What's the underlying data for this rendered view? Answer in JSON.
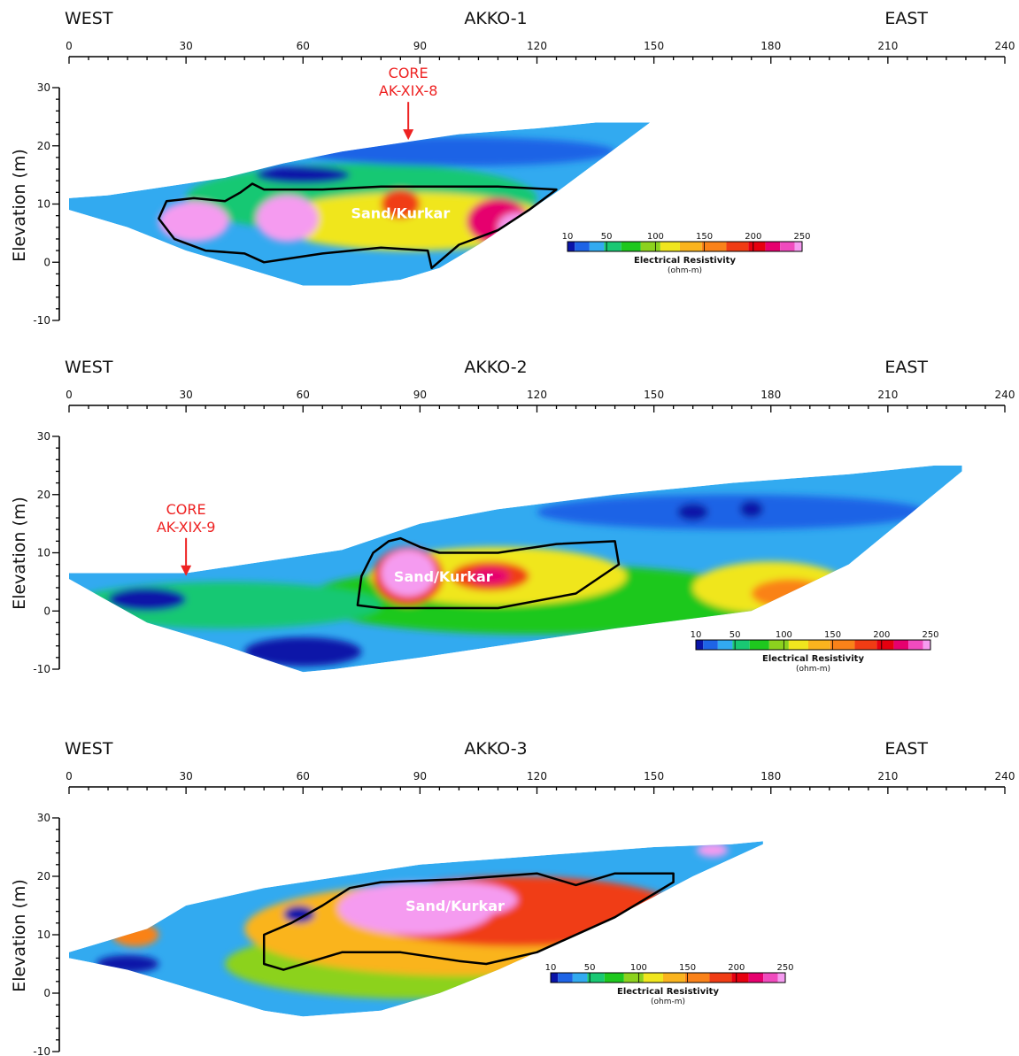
{
  "chart_data": [
    {
      "type": "heatmap",
      "title": "AKKO-1",
      "direction_left": "WEST",
      "direction_right": "EAST",
      "ylabel": "Elevation (m)",
      "xlim": [
        0,
        240
      ],
      "ylim": [
        -10,
        30
      ],
      "x_ticks": [
        0,
        30,
        60,
        90,
        120,
        150,
        180,
        210,
        240
      ],
      "y_ticks": [
        -10,
        0,
        10,
        20,
        30
      ],
      "core_label": [
        "CORE",
        "AK-XIX-8"
      ],
      "core_x": 87,
      "core_elev": 21,
      "unit_label": "Sand/Kurkar",
      "unit_label_pos": [
        85,
        8.5
      ],
      "section_top": [
        [
          0,
          11
        ],
        [
          10,
          11.5
        ],
        [
          25,
          13
        ],
        [
          40,
          14.5
        ],
        [
          55,
          17
        ],
        [
          70,
          19
        ],
        [
          85,
          20.5
        ],
        [
          100,
          22
        ],
        [
          120,
          23
        ],
        [
          135,
          24
        ],
        [
          149,
          24
        ]
      ],
      "section_bottom": [
        [
          149,
          24
        ],
        [
          125,
          12
        ],
        [
          105,
          3
        ],
        [
          95,
          -1
        ],
        [
          85,
          -3
        ],
        [
          72,
          -4
        ],
        [
          60,
          -4
        ],
        [
          45,
          -1
        ],
        [
          30,
          2
        ],
        [
          15,
          6
        ],
        [
          0,
          9
        ]
      ],
      "unit_outline": [
        [
          25,
          10.5
        ],
        [
          32,
          11
        ],
        [
          40,
          10.5
        ],
        [
          44,
          12
        ],
        [
          47,
          13.5
        ],
        [
          50,
          12.5
        ],
        [
          65,
          12.5
        ],
        [
          80,
          13
        ],
        [
          95,
          13
        ],
        [
          110,
          13
        ],
        [
          125,
          12.5
        ],
        [
          118,
          9
        ],
        [
          110,
          5.5
        ],
        [
          100,
          3
        ],
        [
          93,
          -1
        ],
        [
          92,
          2
        ],
        [
          80,
          2.5
        ],
        [
          65,
          1.5
        ],
        [
          55,
          0.5
        ],
        [
          50,
          0
        ],
        [
          45,
          1.5
        ],
        [
          35,
          2
        ],
        [
          27,
          4
        ],
        [
          23,
          7.5
        ]
      ],
      "color_bodies": [
        {
          "kind": "ellipse",
          "cx": 75,
          "cy": 11,
          "rx": 45,
          "ry": 6,
          "value": 60
        },
        {
          "kind": "ellipse",
          "cx": 88,
          "cy": 7,
          "rx": 36,
          "ry": 5,
          "value": 130
        },
        {
          "kind": "ellipse",
          "cx": 32,
          "cy": 7,
          "rx": 9,
          "ry": 3.5,
          "value": 250
        },
        {
          "kind": "ellipse",
          "cx": 56,
          "cy": 7.5,
          "rx": 8,
          "ry": 4,
          "value": 250
        },
        {
          "kind": "ellipse",
          "cx": 85,
          "cy": 10,
          "rx": 5,
          "ry": 2.5,
          "value": 200
        },
        {
          "kind": "ellipse",
          "cx": 110,
          "cy": 7,
          "rx": 8,
          "ry": 4,
          "value": 220
        },
        {
          "kind": "ellipse",
          "cx": 115,
          "cy": 6,
          "rx": 5,
          "ry": 2.5,
          "value": 250
        },
        {
          "kind": "ellipse",
          "cx": 100,
          "cy": 19,
          "rx": 40,
          "ry": 2.5,
          "value": 30
        },
        {
          "kind": "ellipse",
          "cx": 60,
          "cy": 15,
          "rx": 12,
          "ry": 1.5,
          "value": 20
        }
      ],
      "colorbar": {
        "ticks": [
          10,
          50,
          100,
          150,
          200,
          250
        ],
        "label": "Electrical Resistivity",
        "unit": "(ohm-m)"
      }
    },
    {
      "type": "heatmap",
      "title": "AKKO-2",
      "direction_left": "WEST",
      "direction_right": "EAST",
      "ylabel": "Elevation (m)",
      "xlim": [
        0,
        240
      ],
      "ylim": [
        -10,
        30
      ],
      "x_ticks": [
        0,
        30,
        60,
        90,
        120,
        150,
        180,
        210,
        240
      ],
      "y_ticks": [
        -10,
        0,
        10,
        20,
        30
      ],
      "core_label": [
        "CORE",
        "AK-XIX-9"
      ],
      "core_x": 30,
      "core_elev": 6,
      "unit_label": "Sand/Kurkar",
      "unit_label_pos": [
        96,
        6
      ],
      "section_top": [
        [
          0,
          6.5
        ],
        [
          30,
          6.5
        ],
        [
          55,
          9
        ],
        [
          70,
          10.5
        ],
        [
          90,
          15
        ],
        [
          110,
          17.5
        ],
        [
          140,
          20
        ],
        [
          170,
          22
        ],
        [
          200,
          23.5
        ],
        [
          222,
          25
        ],
        [
          229,
          25
        ]
      ],
      "section_bottom": [
        [
          229,
          24
        ],
        [
          200,
          8
        ],
        [
          175,
          0
        ],
        [
          140,
          -3
        ],
        [
          110,
          -6
        ],
        [
          90,
          -8
        ],
        [
          68,
          -10
        ],
        [
          60,
          -10.5
        ],
        [
          40,
          -6
        ],
        [
          20,
          -2
        ],
        [
          0,
          5.5
        ]
      ],
      "unit_outline": [
        [
          78,
          10
        ],
        [
          82,
          12
        ],
        [
          85,
          12.5
        ],
        [
          90,
          11
        ],
        [
          95,
          10
        ],
        [
          110,
          10
        ],
        [
          125,
          11.5
        ],
        [
          140,
          12
        ],
        [
          141,
          8
        ],
        [
          130,
          3
        ],
        [
          110,
          0.5
        ],
        [
          90,
          0.5
        ],
        [
          80,
          0.5
        ],
        [
          74,
          1
        ],
        [
          75,
          6
        ]
      ],
      "color_bodies": [
        {
          "kind": "ellipse",
          "cx": 120,
          "cy": 2,
          "rx": 60,
          "ry": 6,
          "value": 80
        },
        {
          "kind": "ellipse",
          "cx": 40,
          "cy": 1,
          "rx": 40,
          "ry": 4,
          "value": 60
        },
        {
          "kind": "ellipse",
          "cx": 110,
          "cy": 6,
          "rx": 33,
          "ry": 5,
          "value": 130
        },
        {
          "kind": "ellipse",
          "cx": 180,
          "cy": 4,
          "rx": 20,
          "ry": 4.5,
          "value": 130
        },
        {
          "kind": "ellipse",
          "cx": 185,
          "cy": 3,
          "rx": 10,
          "ry": 2.5,
          "value": 160
        },
        {
          "kind": "ellipse",
          "cx": 87,
          "cy": 6,
          "rx": 9,
          "ry": 5,
          "value": 200
        },
        {
          "kind": "ellipse",
          "cx": 87,
          "cy": 6.5,
          "rx": 7,
          "ry": 4,
          "value": 250
        },
        {
          "kind": "ellipse",
          "cx": 108,
          "cy": 6,
          "rx": 10,
          "ry": 2.5,
          "value": 200
        },
        {
          "kind": "ellipse",
          "cx": 108,
          "cy": 6,
          "rx": 5,
          "ry": 1.5,
          "value": 230
        },
        {
          "kind": "ellipse",
          "cx": 60,
          "cy": -7,
          "rx": 15,
          "ry": 2.5,
          "value": 10
        },
        {
          "kind": "ellipse",
          "cx": 20,
          "cy": 2,
          "rx": 10,
          "ry": 2,
          "value": 15
        },
        {
          "kind": "ellipse",
          "cx": 170,
          "cy": 17,
          "rx": 50,
          "ry": 3,
          "value": 30
        },
        {
          "kind": "ellipse",
          "cx": 160,
          "cy": 17,
          "rx": 4,
          "ry": 1.5,
          "value": 15
        },
        {
          "kind": "ellipse",
          "cx": 175,
          "cy": 17.5,
          "rx": 3,
          "ry": 1.5,
          "value": 15
        }
      ],
      "colorbar": {
        "ticks": [
          10,
          50,
          100,
          150,
          200,
          250
        ],
        "label": "Electrical Resistivity",
        "unit": "(ohm-m)"
      }
    },
    {
      "type": "heatmap",
      "title": "AKKO-3",
      "direction_left": "WEST",
      "direction_right": "EAST",
      "ylabel": "Elevation (m)",
      "xlim": [
        0,
        240
      ],
      "ylim": [
        -10,
        30
      ],
      "x_ticks": [
        0,
        30,
        60,
        90,
        120,
        150,
        180,
        210,
        240
      ],
      "y_ticks": [
        -10,
        0,
        10,
        20,
        30
      ],
      "unit_label": "Sand/Kurkar",
      "unit_label_pos": [
        99,
        15
      ],
      "section_top": [
        [
          0,
          7
        ],
        [
          10,
          9
        ],
        [
          20,
          11
        ],
        [
          30,
          15
        ],
        [
          50,
          18
        ],
        [
          70,
          20
        ],
        [
          90,
          22
        ],
        [
          110,
          23
        ],
        [
          130,
          24
        ],
        [
          150,
          25
        ],
        [
          170,
          25.5
        ],
        [
          178,
          26
        ]
      ],
      "section_bottom": [
        [
          178,
          25.5
        ],
        [
          160,
          20
        ],
        [
          140,
          13
        ],
        [
          120,
          7
        ],
        [
          110,
          4
        ],
        [
          95,
          0
        ],
        [
          80,
          -3
        ],
        [
          60,
          -4
        ],
        [
          50,
          -3
        ],
        [
          30,
          1
        ],
        [
          15,
          4
        ],
        [
          0,
          6
        ]
      ],
      "unit_outline": [
        [
          50,
          10
        ],
        [
          57,
          12
        ],
        [
          65,
          15
        ],
        [
          72,
          18
        ],
        [
          80,
          19
        ],
        [
          100,
          19.5
        ],
        [
          110,
          20
        ],
        [
          120,
          20.5
        ],
        [
          125,
          19.5
        ],
        [
          130,
          18.5
        ],
        [
          140,
          20.5
        ],
        [
          145,
          20.5
        ],
        [
          155,
          20.5
        ],
        [
          155,
          19
        ],
        [
          140,
          13
        ],
        [
          120,
          7
        ],
        [
          107,
          5
        ],
        [
          100,
          5.5
        ],
        [
          85,
          7
        ],
        [
          70,
          7
        ],
        [
          55,
          4
        ],
        [
          50,
          5
        ]
      ],
      "color_bodies": [
        {
          "kind": "ellipse",
          "cx": 90,
          "cy": 5,
          "rx": 50,
          "ry": 6,
          "value": 100
        },
        {
          "kind": "ellipse",
          "cx": 100,
          "cy": 11,
          "rx": 55,
          "ry": 8,
          "value": 150
        },
        {
          "kind": "ellipse",
          "cx": 115,
          "cy": 14,
          "rx": 42,
          "ry": 6,
          "value": 200
        },
        {
          "kind": "ellipse",
          "cx": 89,
          "cy": 14.5,
          "rx": 20,
          "ry": 4.5,
          "value": 250
        },
        {
          "kind": "ellipse",
          "cx": 100,
          "cy": 16,
          "rx": 15,
          "ry": 3,
          "value": 250
        },
        {
          "kind": "ellipse",
          "cx": 59,
          "cy": 13.5,
          "rx": 4,
          "ry": 1.5,
          "value": 15
        },
        {
          "kind": "ellipse",
          "cx": 15,
          "cy": 5,
          "rx": 8,
          "ry": 1.5,
          "value": 15
        },
        {
          "kind": "ellipse",
          "cx": 17,
          "cy": 10,
          "rx": 6,
          "ry": 2,
          "value": 160
        },
        {
          "kind": "ellipse",
          "cx": 165,
          "cy": 24.5,
          "rx": 4,
          "ry": 1.2,
          "value": 250
        }
      ],
      "colorbar": {
        "ticks": [
          10,
          50,
          100,
          150,
          200,
          250
        ],
        "label": "Electrical Resistivity",
        "unit": "(ohm-m)"
      }
    }
  ],
  "colors": {
    "scale": [
      {
        "value": 10,
        "color": "#0a14a8"
      },
      {
        "value": 25,
        "color": "#1e64e6"
      },
      {
        "value": 40,
        "color": "#32aaf0"
      },
      {
        "value": 55,
        "color": "#19c873"
      },
      {
        "value": 75,
        "color": "#1ec81e"
      },
      {
        "value": 95,
        "color": "#8cd21e"
      },
      {
        "value": 115,
        "color": "#f0e61e"
      },
      {
        "value": 135,
        "color": "#fab41e"
      },
      {
        "value": 160,
        "color": "#fa8219"
      },
      {
        "value": 185,
        "color": "#f03c14"
      },
      {
        "value": 205,
        "color": "#e6000f"
      },
      {
        "value": 220,
        "color": "#e6006e"
      },
      {
        "value": 235,
        "color": "#f04bbe"
      },
      {
        "value": 250,
        "color": "#f59bf0"
      }
    ],
    "background_value": 50,
    "core_color": "#ee2222",
    "outline_color": "#000000"
  }
}
